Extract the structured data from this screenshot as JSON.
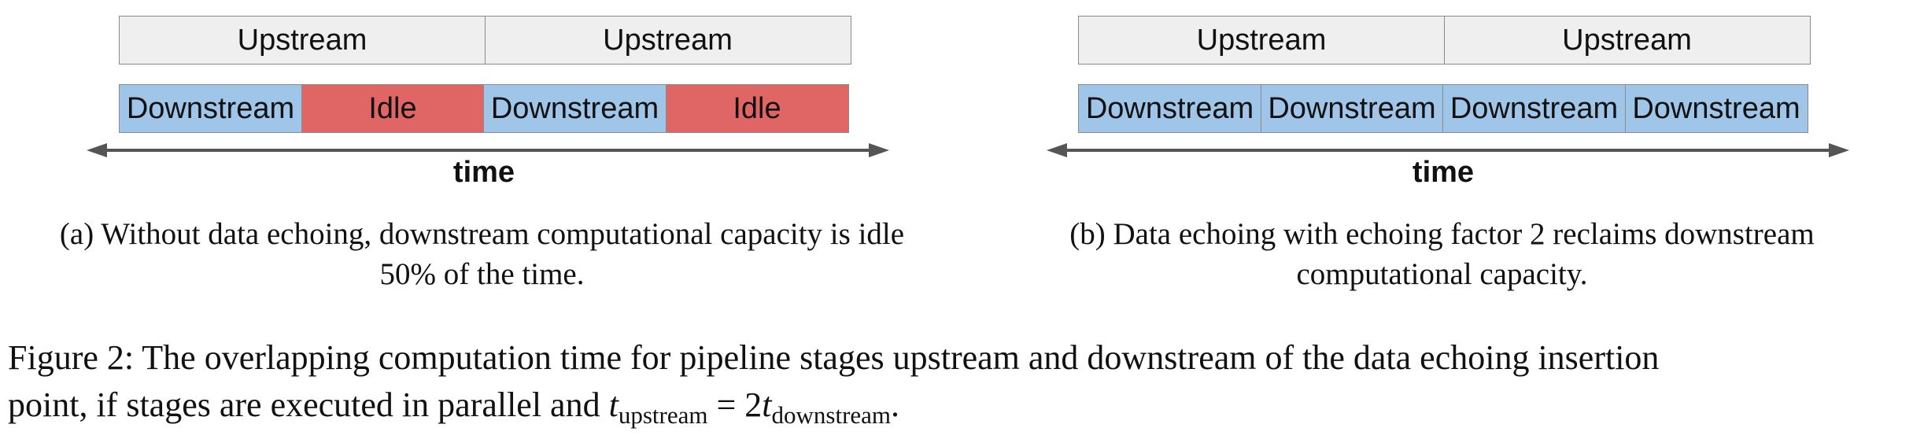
{
  "panel_a": {
    "upstream": [
      "Upstream",
      "Upstream"
    ],
    "downstream": [
      {
        "label": "Downstream",
        "kind": "downstream"
      },
      {
        "label": "Idle",
        "kind": "idle"
      },
      {
        "label": "Downstream",
        "kind": "downstream"
      },
      {
        "label": "Idle",
        "kind": "idle"
      }
    ],
    "axis_label": "time",
    "caption_line1": "(a) Without data echoing, downstream computational capacity is idle",
    "caption_line2": "50% of the time."
  },
  "panel_b": {
    "upstream": [
      "Upstream",
      "Upstream"
    ],
    "downstream": [
      {
        "label": "Downstream",
        "kind": "downstream"
      },
      {
        "label": "Downstream",
        "kind": "downstream"
      },
      {
        "label": "Downstream",
        "kind": "downstream"
      },
      {
        "label": "Downstream",
        "kind": "downstream"
      }
    ],
    "axis_label": "time",
    "caption_line1": "(b) Data echoing with echoing factor 2 reclaims downstream",
    "caption_line2": "computational capacity."
  },
  "figure_caption": {
    "line1": "Figure 2: The overlapping computation time for pipeline stages upstream and downstream of the data echoing insertion",
    "line2_prefix": "point, if stages are executed in parallel and ",
    "t_symbol": "t",
    "sub_upstream": "upstream",
    "equals": " = 2",
    "sub_downstream": "downstream",
    "end": "."
  },
  "colors": {
    "upstream_fill": "#efefef",
    "downstream_fill": "#9fc5e8",
    "idle_fill": "#e06666",
    "axis": "#555555"
  }
}
